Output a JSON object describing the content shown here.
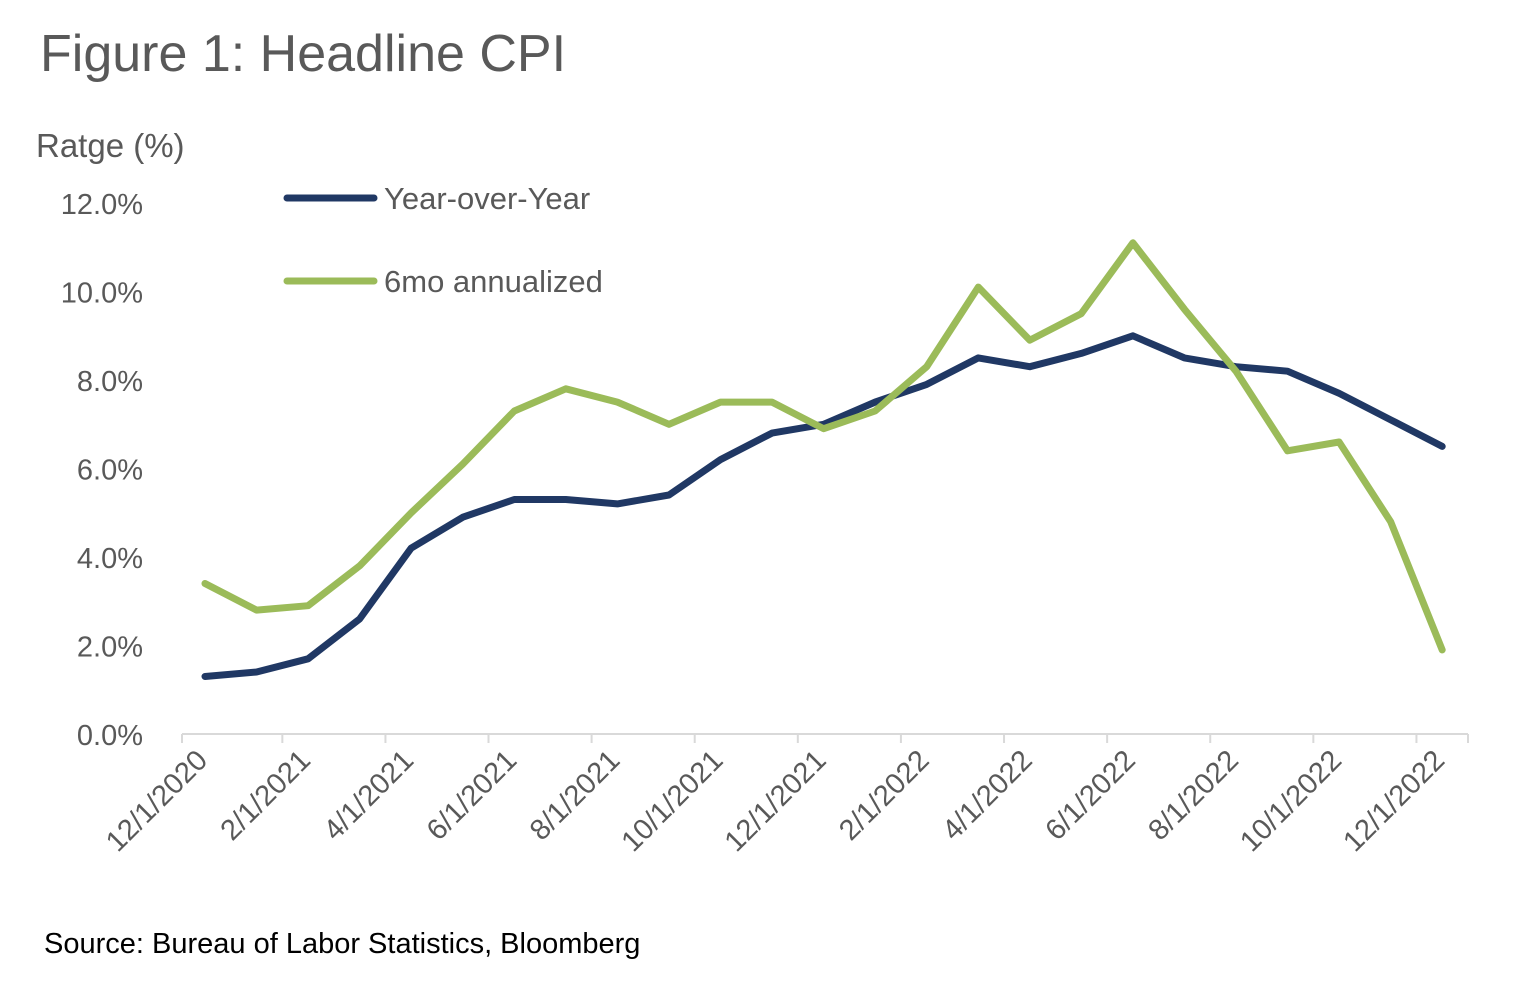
{
  "title": "Figure 1: Headline CPI",
  "source": "Source: Bureau of Labor Statistics, Bloomberg",
  "chart_data": {
    "type": "line",
    "title": "Figure 1: Headline CPI",
    "xlabel": "",
    "ylabel": "Ratge (%)",
    "ylim": [
      0,
      12
    ],
    "y_ticks": [
      "0.0%",
      "2.0%",
      "4.0%",
      "6.0%",
      "8.0%",
      "10.0%",
      "12.0%"
    ],
    "x_tick_labels": [
      "12/1/2020",
      "2/1/2021",
      "4/1/2021",
      "6/1/2021",
      "8/1/2021",
      "10/1/2021",
      "12/1/2021",
      "2/1/2022",
      "4/1/2022",
      "6/1/2022",
      "8/1/2022",
      "10/1/2022",
      "12/1/2022"
    ],
    "x": [
      "12/1/2020",
      "1/1/2021",
      "2/1/2021",
      "3/1/2021",
      "4/1/2021",
      "5/1/2021",
      "6/1/2021",
      "7/1/2021",
      "8/1/2021",
      "9/1/2021",
      "10/1/2021",
      "11/1/2021",
      "12/1/2021",
      "1/1/2022",
      "2/1/2022",
      "3/1/2022",
      "4/1/2022",
      "5/1/2022",
      "6/1/2022",
      "7/1/2022",
      "8/1/2022",
      "9/1/2022",
      "10/1/2022",
      "11/1/2022",
      "12/1/2022"
    ],
    "series": [
      {
        "name": "Year-over-Year",
        "color": "#203864",
        "values": [
          1.3,
          1.4,
          1.7,
          2.6,
          4.2,
          4.9,
          5.3,
          5.3,
          5.2,
          5.4,
          6.2,
          6.8,
          7.0,
          7.5,
          7.9,
          8.5,
          8.3,
          8.6,
          9.0,
          8.5,
          8.3,
          8.2,
          7.7,
          7.1,
          6.5
        ]
      },
      {
        "name": "6mo annualized",
        "color": "#9BBB59",
        "values": [
          3.4,
          2.8,
          2.9,
          3.8,
          5.0,
          6.1,
          7.3,
          7.8,
          7.5,
          7.0,
          7.5,
          7.5,
          6.9,
          7.3,
          8.3,
          10.1,
          8.9,
          9.5,
          11.1,
          9.6,
          8.2,
          6.4,
          6.6,
          4.8,
          1.9
        ]
      }
    ],
    "grid": false,
    "legend_position": "top-left"
  }
}
